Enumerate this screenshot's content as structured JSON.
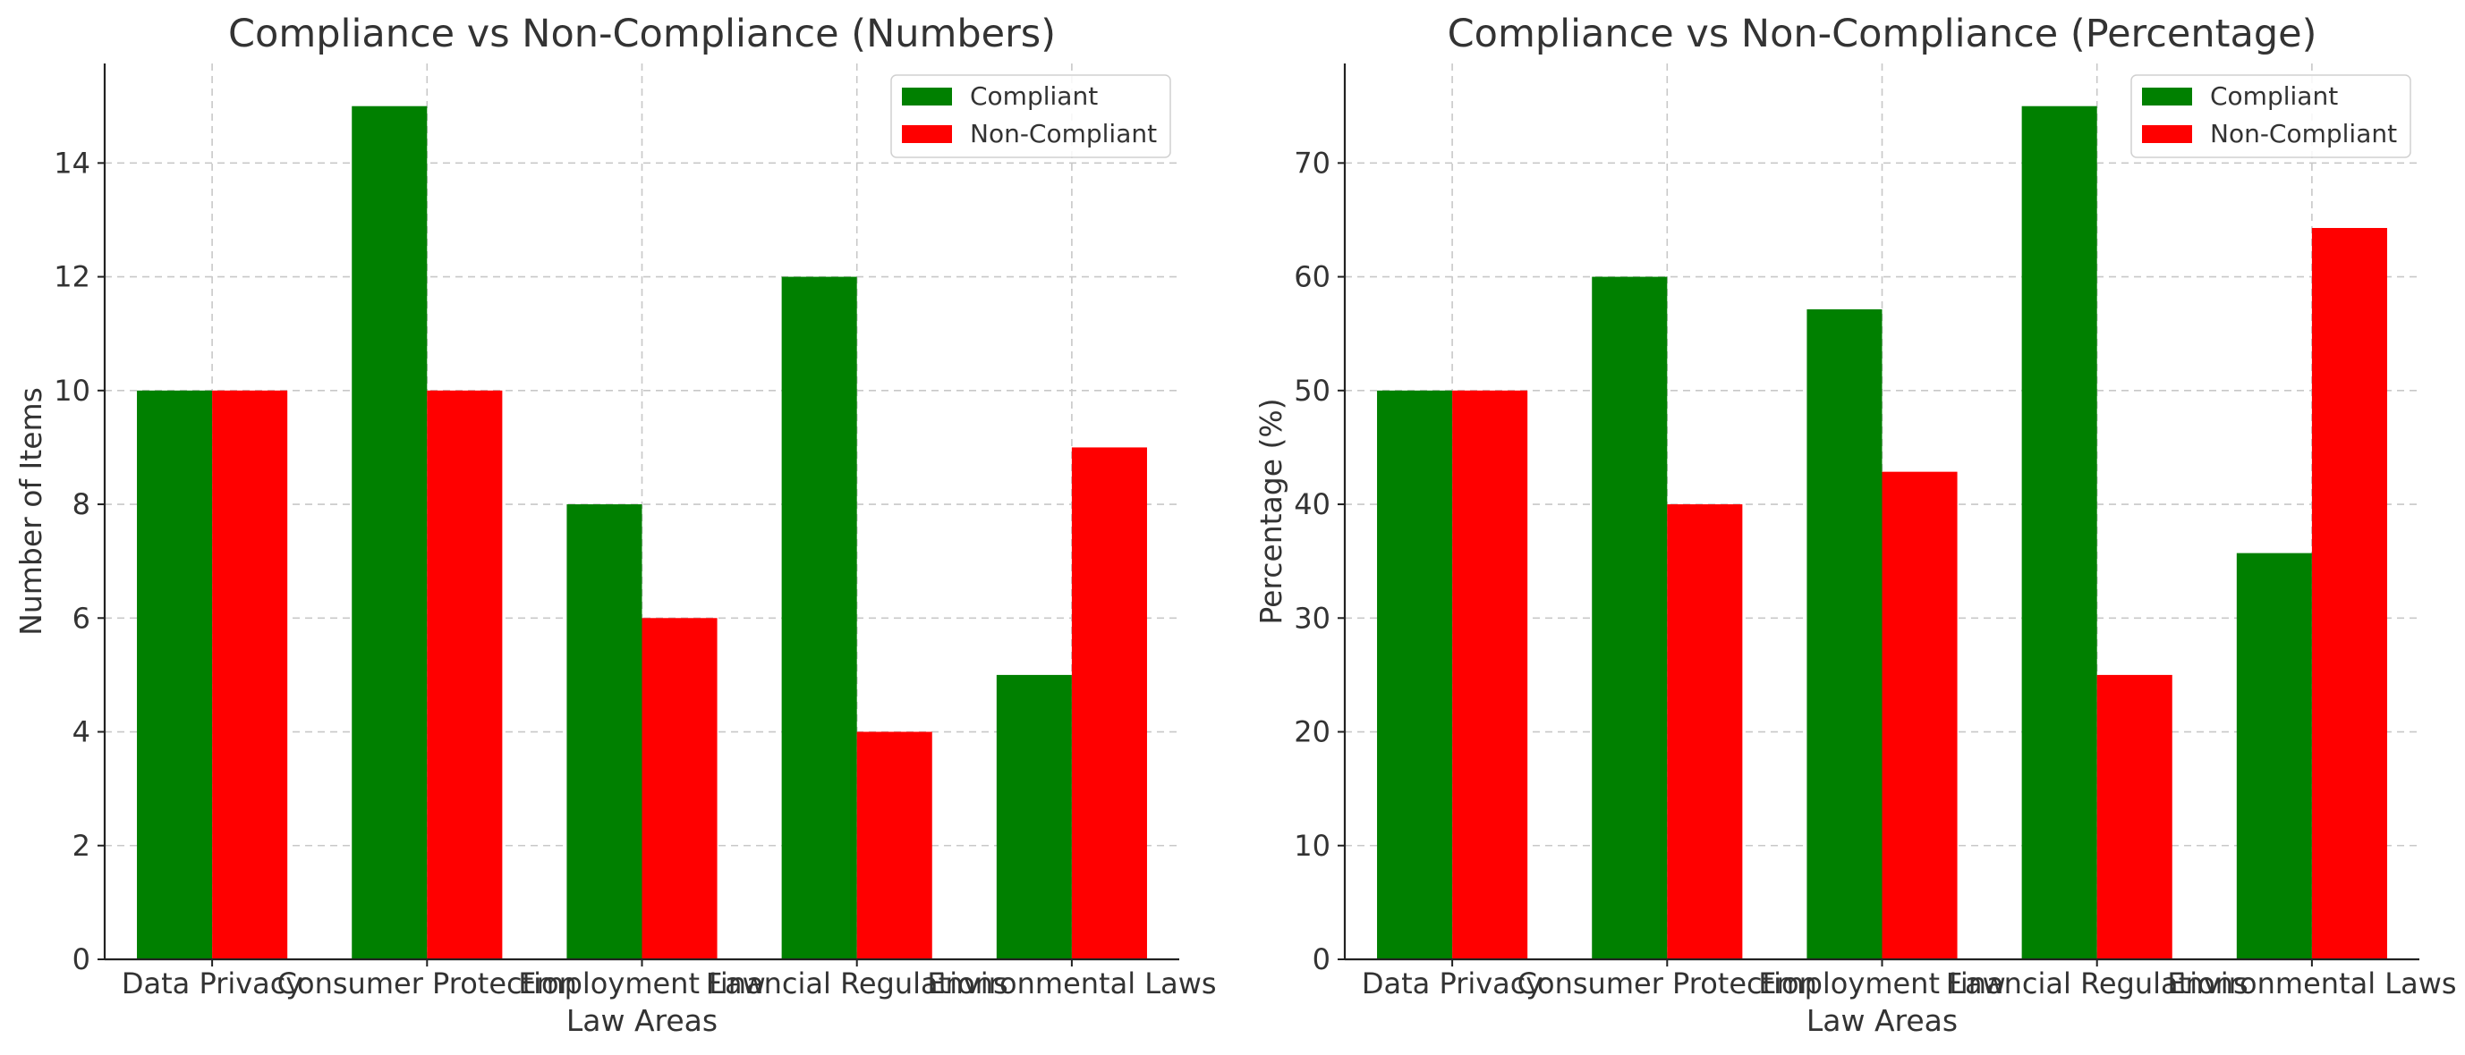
{
  "chart_data": [
    {
      "type": "bar",
      "title": "Compliance vs Non-Compliance (Numbers)",
      "xlabel": "Law Areas",
      "ylabel": "Number of Items",
      "categories": [
        "Data Privacy",
        "Consumer Protection",
        "Employment Law",
        "Financial Regulations",
        "Environmental Laws"
      ],
      "series": [
        {
          "name": "Compliant",
          "color": "#008000",
          "values": [
            10,
            15,
            8,
            12,
            5
          ]
        },
        {
          "name": "Non-Compliant",
          "color": "#ff0000",
          "values": [
            10,
            10,
            6,
            4,
            9
          ]
        }
      ],
      "ylim": [
        0,
        15.75
      ],
      "yticks": [
        0,
        2,
        4,
        6,
        8,
        10,
        12,
        14
      ],
      "grid": true,
      "legend": "top-right"
    },
    {
      "type": "bar",
      "title": "Compliance vs Non-Compliance (Percentage)",
      "xlabel": "Law Areas",
      "ylabel": "Percentage (%)",
      "categories": [
        "Data Privacy",
        "Consumer Protection",
        "Employment Law",
        "Financial Regulations",
        "Environmental Laws"
      ],
      "series": [
        {
          "name": "Compliant",
          "color": "#008000",
          "values": [
            50,
            60,
            57.14,
            75,
            35.71
          ]
        },
        {
          "name": "Non-Compliant",
          "color": "#ff0000",
          "values": [
            50,
            40,
            42.86,
            25,
            64.29
          ]
        }
      ],
      "ylim": [
        0,
        78.75
      ],
      "yticks": [
        0,
        10,
        20,
        30,
        40,
        50,
        60,
        70
      ],
      "grid": true,
      "legend": "top-right"
    }
  ]
}
